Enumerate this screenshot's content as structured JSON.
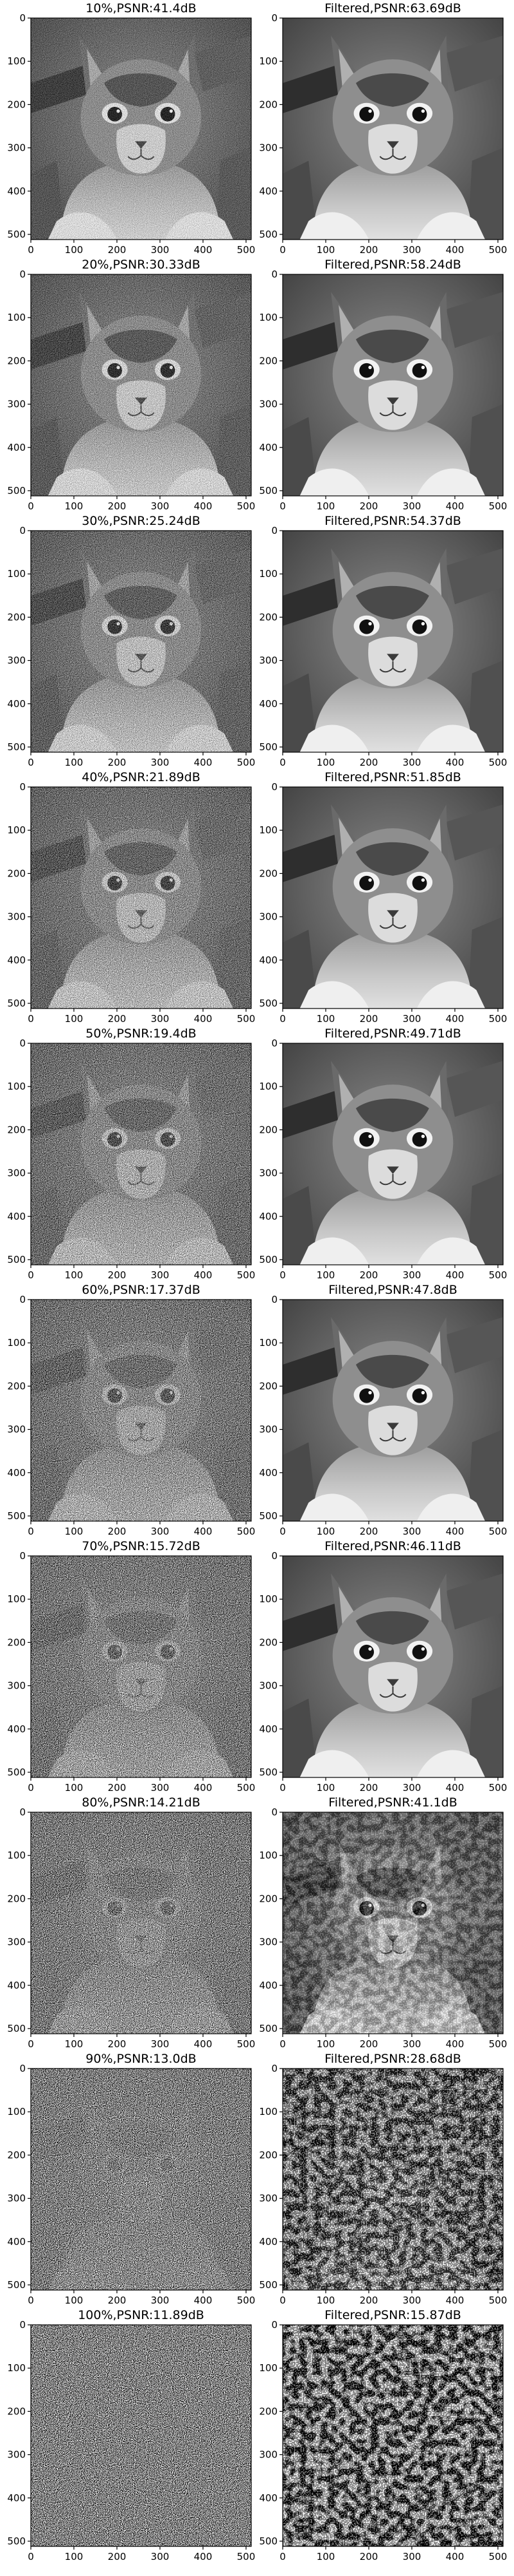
{
  "chart_data": [
    {
      "type": "heatmap",
      "title": "10%,PSNR:41.4dB",
      "kind": "noisy",
      "noise_fraction": 0.1,
      "psnr_db": 41.4
    },
    {
      "type": "heatmap",
      "title": "Filtered,PSNR:63.69dB",
      "kind": "filtered",
      "noise_fraction": 0.1,
      "psnr_db": 63.69
    },
    {
      "type": "heatmap",
      "title": "20%,PSNR:30.33dB",
      "kind": "noisy",
      "noise_fraction": 0.2,
      "psnr_db": 30.33
    },
    {
      "type": "heatmap",
      "title": "Filtered,PSNR:58.24dB",
      "kind": "filtered",
      "noise_fraction": 0.2,
      "psnr_db": 58.24
    },
    {
      "type": "heatmap",
      "title": "30%,PSNR:25.24dB",
      "kind": "noisy",
      "noise_fraction": 0.3,
      "psnr_db": 25.24
    },
    {
      "type": "heatmap",
      "title": "Filtered,PSNR:54.37dB",
      "kind": "filtered",
      "noise_fraction": 0.3,
      "psnr_db": 54.37
    },
    {
      "type": "heatmap",
      "title": "40%,PSNR:21.89dB",
      "kind": "noisy",
      "noise_fraction": 0.4,
      "psnr_db": 21.89
    },
    {
      "type": "heatmap",
      "title": "Filtered,PSNR:51.85dB",
      "kind": "filtered",
      "noise_fraction": 0.4,
      "psnr_db": 51.85
    },
    {
      "type": "heatmap",
      "title": "50%,PSNR:19.4dB",
      "kind": "noisy",
      "noise_fraction": 0.5,
      "psnr_db": 19.4
    },
    {
      "type": "heatmap",
      "title": "Filtered,PSNR:49.71dB",
      "kind": "filtered",
      "noise_fraction": 0.5,
      "psnr_db": 49.71
    },
    {
      "type": "heatmap",
      "title": "60%,PSNR:17.37dB",
      "kind": "noisy",
      "noise_fraction": 0.6,
      "psnr_db": 17.37
    },
    {
      "type": "heatmap",
      "title": "Filtered,PSNR:47.8dB",
      "kind": "filtered",
      "noise_fraction": 0.6,
      "psnr_db": 47.8
    },
    {
      "type": "heatmap",
      "title": "70%,PSNR:15.72dB",
      "kind": "noisy",
      "noise_fraction": 0.7,
      "psnr_db": 15.72
    },
    {
      "type": "heatmap",
      "title": "Filtered,PSNR:46.11dB",
      "kind": "filtered",
      "noise_fraction": 0.7,
      "psnr_db": 46.11
    },
    {
      "type": "heatmap",
      "title": "80%,PSNR:14.21dB",
      "kind": "noisy",
      "noise_fraction": 0.8,
      "psnr_db": 14.21
    },
    {
      "type": "heatmap",
      "title": "Filtered,PSNR:41.1dB",
      "kind": "filtered",
      "noise_fraction": 0.8,
      "psnr_db": 41.1
    },
    {
      "type": "heatmap",
      "title": "90%,PSNR:13.0dB",
      "kind": "noisy",
      "noise_fraction": 0.9,
      "psnr_db": 13.0
    },
    {
      "type": "heatmap",
      "title": "Filtered,PSNR:28.68dB",
      "kind": "filtered",
      "noise_fraction": 0.9,
      "psnr_db": 28.68
    },
    {
      "type": "heatmap",
      "title": "100%,PSNR:11.89dB",
      "kind": "noisy",
      "noise_fraction": 1.0,
      "psnr_db": 11.89
    },
    {
      "type": "heatmap",
      "title": "Filtered,PSNR:15.87dB",
      "kind": "filtered",
      "noise_fraction": 1.0,
      "psnr_db": 15.87
    }
  ],
  "axes": {
    "x_ticks": [
      0,
      100,
      200,
      300,
      400,
      500
    ],
    "y_ticks": [
      0,
      100,
      200,
      300,
      400,
      500
    ],
    "x_tick_labels": [
      "0",
      "100",
      "200",
      "300",
      "400",
      "500"
    ],
    "y_tick_labels": [
      "0",
      "100",
      "200",
      "300",
      "400",
      "500"
    ],
    "xlim": [
      0,
      512
    ],
    "ylim": [
      512,
      0
    ],
    "colormap": "gray",
    "grid": false
  }
}
